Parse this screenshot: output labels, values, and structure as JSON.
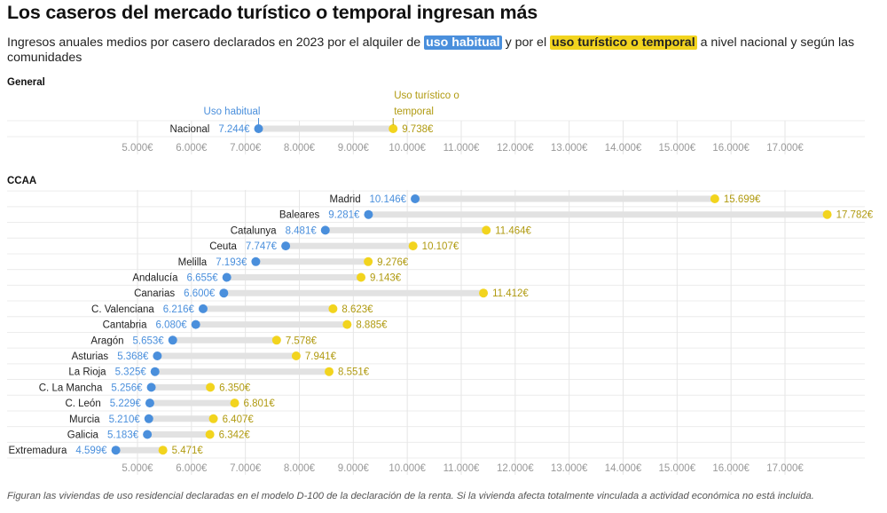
{
  "title": "Los caseros del mercado turístico o temporal ingresan más",
  "subtitle": {
    "part1": "Ingresos anuales medios por casero declarados en 2023 por el alquiler de ",
    "hl_habitual": "uso habitual",
    "part2": " y por el ",
    "hl_turistico": "uso turístico o temporal",
    "part3": " a nivel nacional y según las comunidades"
  },
  "footnote": "Figuran las viviendas de uso residencial declaradas en el modelo D-100 de la declaración de la renta. Si la vivienda afecta totalmente vinculada a actividad económica no está incluida.",
  "colors": {
    "habitual": "#4a8fdc",
    "turistico": "#f2d41e",
    "turistico_text": "#b09a10",
    "track": "#e2e2e2",
    "grid": "#e6e6e6",
    "tick_text": "#999999"
  },
  "chart_data": [
    {
      "type": "dumbbell",
      "panel_title": "General",
      "series": [
        {
          "name": "Uso habitual"
        },
        {
          "name": "Uso turístico o temporal"
        }
      ],
      "xlim": [
        4000,
        18000
      ],
      "ticks": [
        5000,
        6000,
        7000,
        8000,
        9000,
        10000,
        11000,
        12000,
        13000,
        14000,
        15000,
        16000,
        17000
      ],
      "tick_labels": [
        "5.000€",
        "6.000€",
        "7.000€",
        "8.000€",
        "9.000€",
        "10.000€",
        "11.000€",
        "12.000€",
        "13.000€",
        "14.000€",
        "15.000€",
        "16.000€",
        "17.000€"
      ],
      "annotations": {
        "habitual": "Uso habitual",
        "turistico_line1": "Uso turístico o",
        "turistico_line2": "temporal"
      },
      "rows": [
        {
          "name": "Nacional",
          "habitual": 7244,
          "habitual_label": "7.244€",
          "turistico": 9738,
          "turistico_label": "9.738€"
        }
      ]
    },
    {
      "type": "dumbbell",
      "panel_title": "CCAA",
      "xlim": [
        4000,
        18000
      ],
      "ticks": [
        5000,
        6000,
        7000,
        8000,
        9000,
        10000,
        11000,
        12000,
        13000,
        14000,
        15000,
        16000,
        17000
      ],
      "tick_labels": [
        "5.000€",
        "6.000€",
        "7.000€",
        "8.000€",
        "9.000€",
        "10.000€",
        "11.000€",
        "12.000€",
        "13.000€",
        "14.000€",
        "15.000€",
        "16.000€",
        "17.000€"
      ],
      "rows": [
        {
          "name": "Madrid",
          "habitual": 10146,
          "habitual_label": "10.146€",
          "turistico": 15699,
          "turistico_label": "15.699€"
        },
        {
          "name": "Baleares",
          "habitual": 9281,
          "habitual_label": "9.281€",
          "turistico": 17782,
          "turistico_label": "17.782€"
        },
        {
          "name": "Catalunya",
          "habitual": 8481,
          "habitual_label": "8.481€",
          "turistico": 11464,
          "turistico_label": "11.464€"
        },
        {
          "name": "Ceuta",
          "habitual": 7747,
          "habitual_label": "7.747€",
          "turistico": 10107,
          "turistico_label": "10.107€"
        },
        {
          "name": "Melilla",
          "habitual": 7193,
          "habitual_label": "7.193€",
          "turistico": 9276,
          "turistico_label": "9.276€"
        },
        {
          "name": "Andalucía",
          "habitual": 6655,
          "habitual_label": "6.655€",
          "turistico": 9143,
          "turistico_label": "9.143€"
        },
        {
          "name": "Canarias",
          "habitual": 6600,
          "habitual_label": "6.600€",
          "turistico": 11412,
          "turistico_label": "11.412€"
        },
        {
          "name": "C. Valenciana",
          "habitual": 6216,
          "habitual_label": "6.216€",
          "turistico": 8623,
          "turistico_label": "8.623€"
        },
        {
          "name": "Cantabria",
          "habitual": 6080,
          "habitual_label": "6.080€",
          "turistico": 8885,
          "turistico_label": "8.885€"
        },
        {
          "name": "Aragón",
          "habitual": 5653,
          "habitual_label": "5.653€",
          "turistico": 7578,
          "turistico_label": "7.578€"
        },
        {
          "name": "Asturias",
          "habitual": 5368,
          "habitual_label": "5.368€",
          "turistico": 7941,
          "turistico_label": "7.941€"
        },
        {
          "name": "La Rioja",
          "habitual": 5325,
          "habitual_label": "5.325€",
          "turistico": 8551,
          "turistico_label": "8.551€"
        },
        {
          "name": "C. La Mancha",
          "habitual": 5256,
          "habitual_label": "5.256€",
          "turistico": 6350,
          "turistico_label": "6.350€"
        },
        {
          "name": "C. León",
          "habitual": 5229,
          "habitual_label": "5.229€",
          "turistico": 6801,
          "turistico_label": "6.801€"
        },
        {
          "name": "Murcia",
          "habitual": 5210,
          "habitual_label": "5.210€",
          "turistico": 6407,
          "turistico_label": "6.407€"
        },
        {
          "name": "Galicia",
          "habitual": 5183,
          "habitual_label": "5.183€",
          "turistico": 6342,
          "turistico_label": "6.342€"
        },
        {
          "name": "Extremadura",
          "habitual": 4599,
          "habitual_label": "4.599€",
          "turistico": 5471,
          "turistico_label": "5.471€"
        }
      ]
    }
  ]
}
